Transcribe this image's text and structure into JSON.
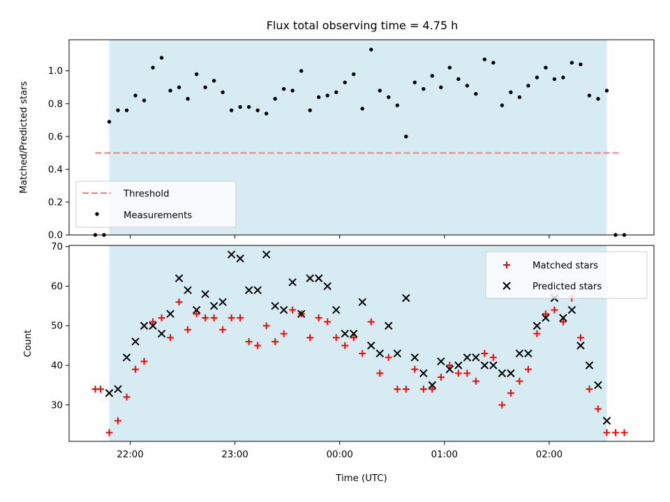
{
  "title": "Flux total observing time = 4.75 h",
  "colors": {
    "span": "#add8e6",
    "threshold": "#f08080",
    "matched": "#ff0000",
    "predicted": "#000000",
    "measurements": "#000000"
  },
  "chart_data": [
    {
      "type": "scatter",
      "ylabel": "Matched/Predicted stars",
      "xlabel": "",
      "ylim": [
        0,
        1.19
      ],
      "xlim": [
        "21:25",
        "03:00"
      ],
      "yticks": [
        "0.0",
        "0.2",
        "0.4",
        "0.6",
        "0.8",
        "1.0"
      ],
      "shaded_range": [
        "21:48",
        "02:33"
      ],
      "legend": {
        "location": "lower-left",
        "entries": [
          "Threshold",
          "Measurements"
        ]
      },
      "threshold": {
        "name": "Threshold",
        "y": 0.5,
        "x_range": [
          "21:40",
          "02:41"
        ]
      },
      "series": [
        {
          "name": "Measurements",
          "x": [
            "21:40",
            "21:45",
            "21:48",
            "21:53",
            "21:58",
            "22:03",
            "22:08",
            "22:13",
            "22:18",
            "22:23",
            "22:28",
            "22:33",
            "22:38",
            "22:43",
            "22:48",
            "22:53",
            "22:58",
            "23:03",
            "23:08",
            "23:13",
            "23:18",
            "23:23",
            "23:28",
            "23:33",
            "23:38",
            "23:43",
            "23:48",
            "23:53",
            "23:58",
            "00:03",
            "00:08",
            "00:13",
            "00:18",
            "00:23",
            "00:28",
            "00:33",
            "00:38",
            "00:43",
            "00:48",
            "00:53",
            "00:58",
            "01:03",
            "01:08",
            "01:13",
            "01:18",
            "01:23",
            "01:28",
            "01:33",
            "01:38",
            "01:43",
            "01:48",
            "01:53",
            "01:58",
            "02:03",
            "02:08",
            "02:13",
            "02:18",
            "02:23",
            "02:28",
            "02:33",
            "02:38",
            "02:43"
          ],
          "values": [
            0.0,
            0.0,
            0.69,
            0.76,
            0.76,
            0.85,
            0.82,
            1.02,
            1.08,
            0.88,
            0.9,
            0.83,
            0.98,
            0.9,
            0.94,
            0.87,
            0.76,
            0.78,
            0.78,
            0.76,
            0.74,
            0.83,
            0.89,
            0.88,
            1.0,
            0.76,
            0.84,
            0.85,
            0.87,
            0.93,
            0.98,
            0.77,
            1.13,
            0.88,
            0.84,
            0.79,
            0.6,
            0.93,
            0.89,
            0.97,
            0.9,
            1.02,
            0.95,
            0.91,
            0.86,
            1.07,
            1.05,
            0.79,
            0.87,
            0.84,
            0.91,
            0.96,
            1.02,
            0.95,
            0.96,
            1.05,
            1.04,
            0.85,
            0.83,
            0.88,
            0.0,
            0.0
          ]
        }
      ]
    },
    {
      "type": "scatter",
      "ylabel": "Count",
      "xlabel": "Time (UTC)",
      "ylim": [
        20.8,
        70.3
      ],
      "xlim": [
        "21:25",
        "03:00"
      ],
      "yticks": [
        "30",
        "40",
        "50",
        "60",
        "70"
      ],
      "xticks": [
        "22:00",
        "23:00",
        "00:00",
        "01:00",
        "02:00"
      ],
      "shaded_range": [
        "21:48",
        "02:33"
      ],
      "legend": {
        "location": "top-right",
        "entries": [
          "Matched stars",
          "Predicted stars"
        ]
      },
      "series": [
        {
          "name": "Matched stars",
          "x": [
            "21:40",
            "21:43",
            "21:48",
            "21:53",
            "21:58",
            "22:03",
            "22:08",
            "22:13",
            "22:18",
            "22:23",
            "22:28",
            "22:33",
            "22:38",
            "22:43",
            "22:48",
            "22:53",
            "22:58",
            "23:03",
            "23:08",
            "23:13",
            "23:18",
            "23:23",
            "23:28",
            "23:33",
            "23:38",
            "23:43",
            "23:48",
            "23:53",
            "23:58",
            "00:03",
            "00:08",
            "00:13",
            "00:18",
            "00:23",
            "00:28",
            "00:33",
            "00:38",
            "00:43",
            "00:48",
            "00:53",
            "00:58",
            "01:03",
            "01:08",
            "01:13",
            "01:18",
            "01:23",
            "01:28",
            "01:33",
            "01:38",
            "01:43",
            "01:48",
            "01:53",
            "01:58",
            "02:03",
            "02:08",
            "02:13",
            "02:18",
            "02:23",
            "02:28",
            "02:33",
            "02:38",
            "02:43"
          ],
          "values": [
            34,
            34,
            23,
            26,
            32,
            39,
            41,
            51,
            52,
            47,
            56,
            49,
            53,
            52,
            52,
            49,
            52,
            52,
            46,
            45,
            50,
            46,
            48,
            54,
            53,
            47,
            52,
            51,
            47,
            45,
            47,
            43,
            51,
            38,
            42,
            34,
            34,
            39,
            34,
            34,
            37,
            40,
            38,
            38,
            36,
            43,
            42,
            30,
            33,
            36,
            39,
            48,
            53,
            54,
            51,
            57,
            47,
            34,
            29,
            23,
            23,
            23
          ],
          "marker": "+"
        },
        {
          "name": "Predicted stars",
          "x": [
            "21:48",
            "21:53",
            "21:58",
            "22:03",
            "22:08",
            "22:13",
            "22:18",
            "22:23",
            "22:28",
            "22:33",
            "22:38",
            "22:43",
            "22:48",
            "22:53",
            "22:58",
            "23:03",
            "23:08",
            "23:13",
            "23:18",
            "23:23",
            "23:28",
            "23:33",
            "23:38",
            "23:43",
            "23:48",
            "23:53",
            "23:58",
            "00:03",
            "00:08",
            "00:13",
            "00:18",
            "00:23",
            "00:28",
            "00:33",
            "00:38",
            "00:43",
            "00:48",
            "00:53",
            "00:58",
            "01:03",
            "01:08",
            "01:13",
            "01:18",
            "01:23",
            "01:28",
            "01:33",
            "01:38",
            "01:43",
            "01:48",
            "01:53",
            "01:58",
            "02:03",
            "02:08",
            "02:13",
            "02:18",
            "02:23",
            "02:28",
            "02:33"
          ],
          "values": [
            33,
            34,
            42,
            46,
            50,
            50,
            48,
            53,
            62,
            59,
            54,
            58,
            55,
            56,
            68,
            67,
            59,
            59,
            68,
            55,
            54,
            61,
            53,
            62,
            62,
            60,
            54,
            48,
            48,
            56,
            45,
            43,
            50,
            43,
            57,
            42,
            38,
            35,
            41,
            39,
            40,
            42,
            42,
            40,
            40,
            38,
            38,
            43,
            43,
            50,
            52,
            57,
            52,
            54,
            45,
            40,
            35,
            26
          ],
          "marker": "x"
        }
      ]
    }
  ]
}
